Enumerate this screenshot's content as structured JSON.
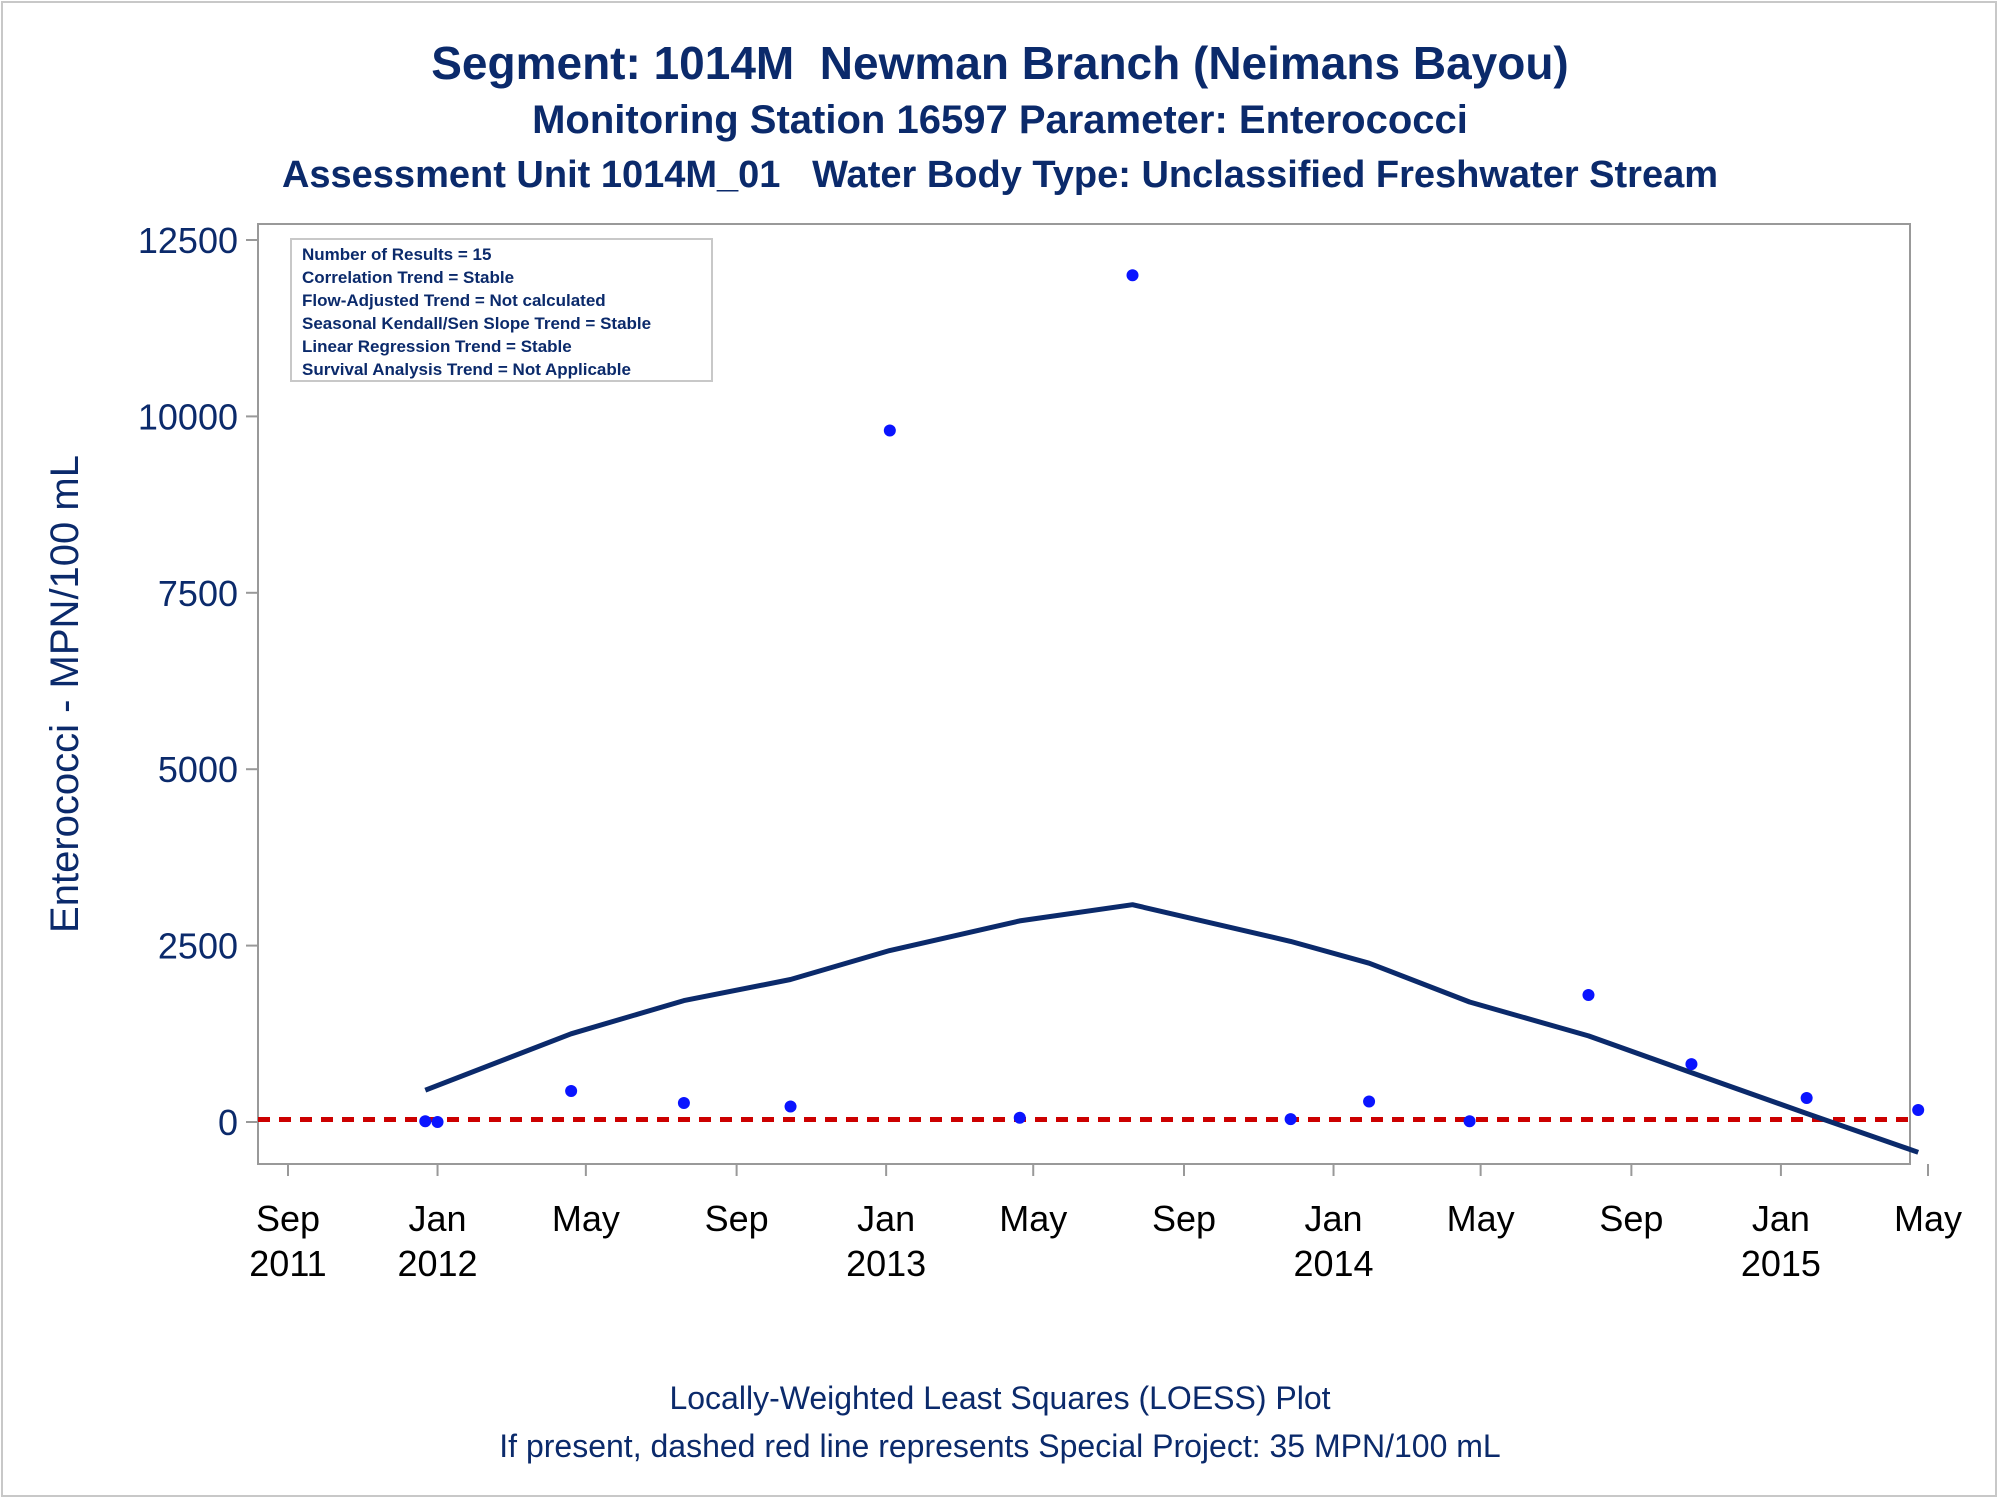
{
  "titles": {
    "line1": "Segment: 1014M  Newman Branch (Neimans Bayou)",
    "line2": "Monitoring Station 16597 Parameter: Enterococci",
    "line3": "Assessment Unit 1014M_01   Water Body Type: Unclassified Freshwater Stream"
  },
  "footnotes": {
    "line1": "Locally-Weighted Least Squares (LOESS) Plot",
    "line2": "If present, dashed red line represents Special Project: 35 MPN/100 mL"
  },
  "stats_box": [
    "Number of Results = 15",
    "Correlation Trend = Stable",
    "Flow-Adjusted Trend = Not calculated",
    "Seasonal Kendall/Sen Slope Trend = Stable",
    "Linear Regression Trend = Stable",
    "Survival Analysis Trend = Not Applicable"
  ],
  "colors": {
    "title": "#0b2a6b",
    "points": "#0a14ff",
    "loess": "#0b2a6b",
    "reference": "#cc0000",
    "axis": "#999999"
  },
  "chart_data": {
    "type": "scatter",
    "title": "Segment: 1014M  Newman Branch (Neimans Bayou)",
    "ylabel": "Enterococci - MPN/100 mL",
    "xlabel": "",
    "x_range": [
      "2011-08-25",
      "2015-05-10"
    ],
    "ylim": [
      -600,
      12800
    ],
    "yticks": [
      0,
      2500,
      5000,
      7500,
      10000,
      12500
    ],
    "xticks": [
      {
        "date": "2011-09-01",
        "label": [
          "Sep",
          "2011"
        ]
      },
      {
        "date": "2012-01-01",
        "label": [
          "Jan",
          "2012"
        ]
      },
      {
        "date": "2012-05-01",
        "label": [
          "May",
          ""
        ]
      },
      {
        "date": "2012-09-01",
        "label": [
          "Sep",
          ""
        ]
      },
      {
        "date": "2013-01-01",
        "label": [
          "Jan",
          "2013"
        ]
      },
      {
        "date": "2013-05-01",
        "label": [
          "May",
          ""
        ]
      },
      {
        "date": "2013-09-01",
        "label": [
          "Sep",
          ""
        ]
      },
      {
        "date": "2014-01-01",
        "label": [
          "Jan",
          "2014"
        ]
      },
      {
        "date": "2014-05-01",
        "label": [
          "May",
          ""
        ]
      },
      {
        "date": "2014-09-01",
        "label": [
          "Sep",
          ""
        ]
      },
      {
        "date": "2015-01-01",
        "label": [
          "Jan",
          "2015"
        ]
      },
      {
        "date": "2015-05-01",
        "label": [
          "May",
          ""
        ]
      }
    ],
    "series": [
      {
        "name": "Results",
        "type": "scatter",
        "points": [
          {
            "x": "2011-12-22",
            "y": 10
          },
          {
            "x": "2012-01-01",
            "y": 0
          },
          {
            "x": "2012-04-19",
            "y": 440
          },
          {
            "x": "2012-07-20",
            "y": 270
          },
          {
            "x": "2012-10-15",
            "y": 220
          },
          {
            "x": "2013-01-04",
            "y": 9800
          },
          {
            "x": "2013-04-20",
            "y": 60
          },
          {
            "x": "2013-07-21",
            "y": 12000
          },
          {
            "x": "2013-11-27",
            "y": 40
          },
          {
            "x": "2014-01-30",
            "y": 290
          },
          {
            "x": "2014-04-22",
            "y": 10
          },
          {
            "x": "2014-07-28",
            "y": 1800
          },
          {
            "x": "2014-10-20",
            "y": 820
          },
          {
            "x": "2015-01-22",
            "y": 340
          },
          {
            "x": "2015-04-23",
            "y": 170
          }
        ]
      },
      {
        "name": "LOESS",
        "type": "line",
        "points": [
          {
            "x": "2011-12-22",
            "y": 450
          },
          {
            "x": "2012-04-19",
            "y": 1250
          },
          {
            "x": "2012-07-20",
            "y": 1720
          },
          {
            "x": "2012-10-15",
            "y": 2020
          },
          {
            "x": "2013-01-04",
            "y": 2430
          },
          {
            "x": "2013-04-20",
            "y": 2850
          },
          {
            "x": "2013-07-21",
            "y": 3080
          },
          {
            "x": "2013-11-27",
            "y": 2560
          },
          {
            "x": "2014-01-30",
            "y": 2250
          },
          {
            "x": "2014-04-22",
            "y": 1700
          },
          {
            "x": "2014-07-28",
            "y": 1220
          },
          {
            "x": "2014-10-20",
            "y": 700
          },
          {
            "x": "2015-01-22",
            "y": 120
          },
          {
            "x": "2015-04-23",
            "y": -430
          }
        ]
      }
    ],
    "reference_line": {
      "y": 35,
      "style": "dashed"
    }
  }
}
